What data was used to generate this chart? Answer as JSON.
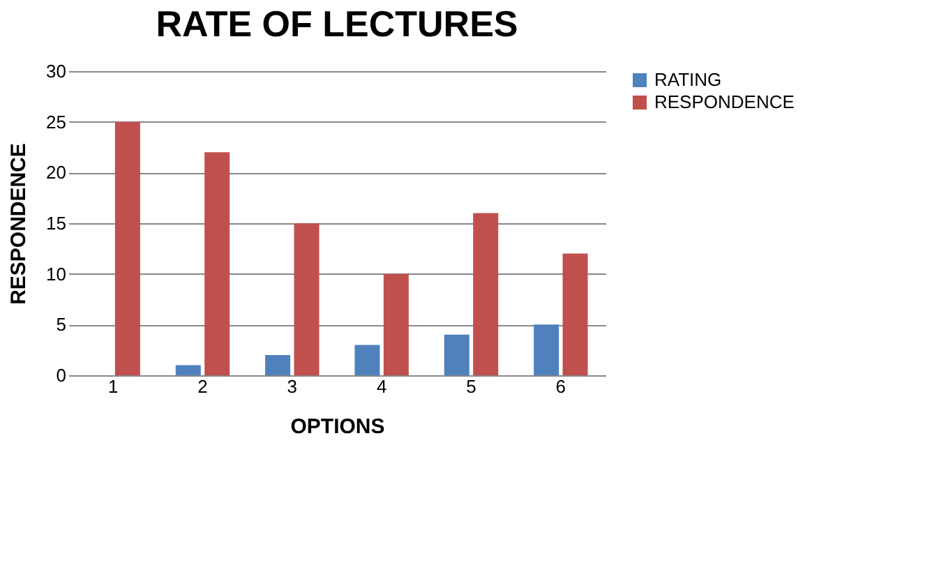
{
  "chart_data": {
    "type": "bar",
    "title": "RATE OF LECTURES",
    "xlabel": "OPTIONS",
    "ylabel": "RESPONDENCE",
    "categories": [
      "1",
      "2",
      "3",
      "4",
      "5",
      "6"
    ],
    "series": [
      {
        "name": "RATING",
        "color": "#4f81bd",
        "values": [
          0,
          1,
          2,
          3,
          4,
          5
        ]
      },
      {
        "name": "RESPONDENCE",
        "color": "#c0504d",
        "values": [
          25,
          22,
          15,
          10,
          16,
          12
        ]
      }
    ],
    "ylim": [
      0,
      30
    ],
    "yticks": [
      0,
      5,
      10,
      15,
      20,
      25,
      30
    ],
    "grid": "y",
    "legend": "right"
  }
}
